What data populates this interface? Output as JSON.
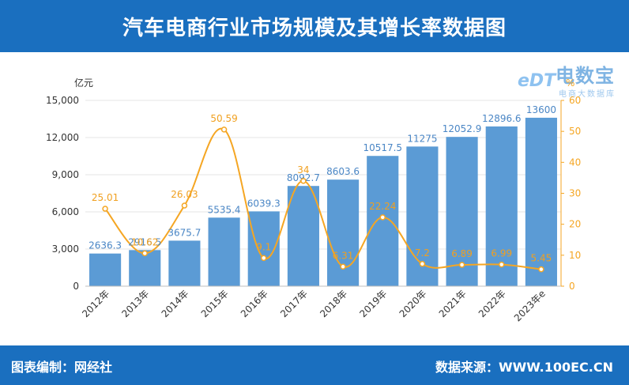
{
  "header": {
    "title": "汽车电商行业市场规模及其增长率数据图"
  },
  "footer": {
    "left": "图表编制：网经社",
    "right": "数据来源：WWW.100EC.CN"
  },
  "logo": {
    "main": "电数宝",
    "sub": "电商大数据库",
    "edt": "eDT"
  },
  "chart_data": {
    "type": "bar",
    "categories": [
      "2012年",
      "2013年",
      "2014年",
      "2015年",
      "2016年",
      "2017年",
      "2018年",
      "2019年",
      "2020年",
      "2021年",
      "2022年",
      "2023年e"
    ],
    "ylabel": "亿元",
    "ylim": [
      0,
      15000
    ],
    "y_ticks": [
      "0",
      "3,000",
      "6,000",
      "9,000",
      "12,000",
      "15,000"
    ],
    "y2label": "%",
    "y2lim": [
      0,
      60
    ],
    "y2_ticks": [
      "0",
      "10",
      "20",
      "30",
      "40",
      "50",
      "60"
    ],
    "series": [
      {
        "type": "bar",
        "values": [
          2636.3,
          2916.5,
          3675.7,
          5535.4,
          6039.3,
          8092.7,
          8603.6,
          10517.5,
          11275,
          12052.9,
          12896.6,
          13600
        ],
        "labels": [
          "2636.3",
          "2916.5",
          "3675.7",
          "5535.4",
          "6039.3",
          "8092.7",
          "8603.6",
          "10517.5",
          "11275",
          "12052.9",
          "12896.6",
          "13600"
        ]
      },
      {
        "type": "line",
        "axis": "right",
        "values": [
          25.01,
          10.62,
          26.03,
          50.59,
          9.1,
          34,
          6.31,
          22.24,
          7.2,
          6.89,
          6.99,
          5.45
        ],
        "labels": [
          "25.01",
          "10.62",
          "26.03",
          "50.59",
          "9.1",
          "34",
          "6.31",
          "22.24",
          "7.2",
          "6.89",
          "6.99",
          "5.45"
        ]
      }
    ],
    "colors": {
      "bar": "#5b9bd5",
      "bar_label": "#4a86c5",
      "line": "#f5a623",
      "line_label": "#f0a020",
      "axis_text": "#333333",
      "grid": "#e6e6e6"
    },
    "grid": true
  }
}
